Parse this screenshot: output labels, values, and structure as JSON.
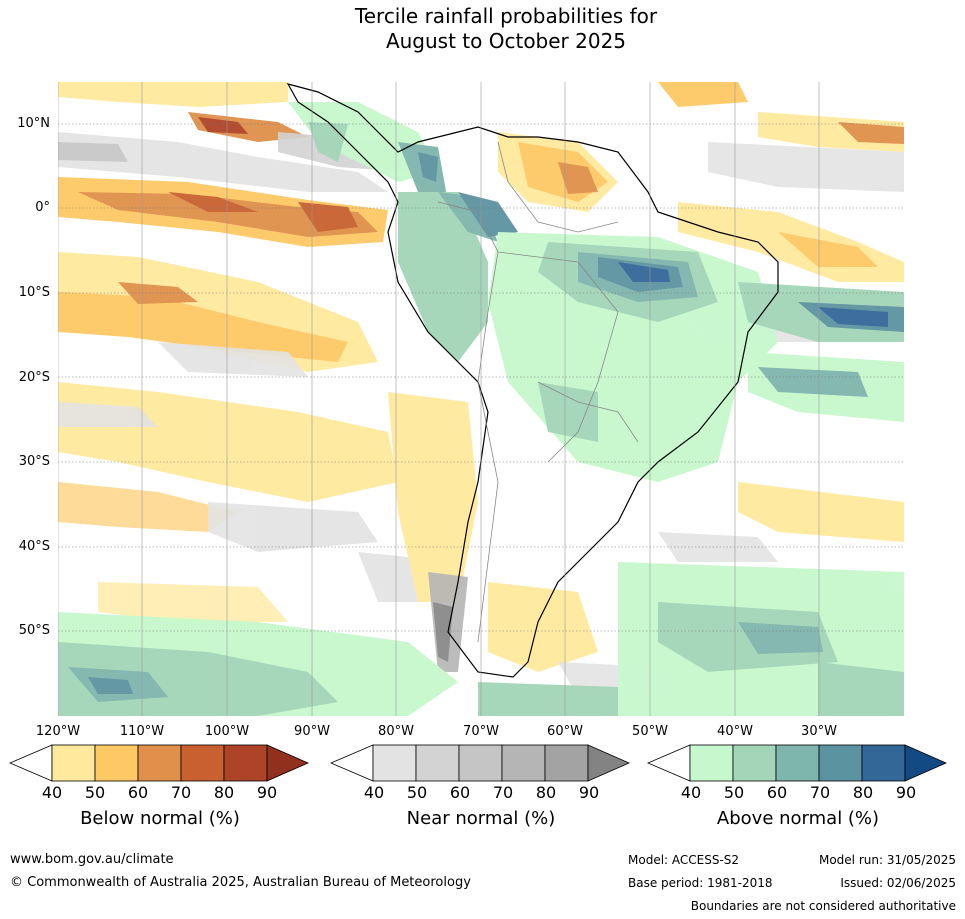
{
  "title": {
    "line1": "Tercile rainfall probabilities for",
    "line2": "August to October 2025"
  },
  "lat_labels": [
    "10°N",
    "0°",
    "10°S",
    "20°S",
    "30°S",
    "40°S",
    "50°S"
  ],
  "lon_labels": [
    "120°W",
    "110°W",
    "100°W",
    "90°W",
    "80°W",
    "70°W",
    "60°W",
    "50°W",
    "40°W",
    "30°W"
  ],
  "colorbars": [
    {
      "title": "Below normal (%)",
      "ticks": [
        "40",
        "50",
        "60",
        "70",
        "80",
        "90"
      ],
      "colors": [
        "#ffe99d",
        "#fec965",
        "#e0904a",
        "#c8602f",
        "#ae4427",
        "#92301e"
      ]
    },
    {
      "title": "Near normal (%)",
      "ticks": [
        "40",
        "50",
        "60",
        "70",
        "80",
        "90"
      ],
      "colors": [
        "#e3e3e3",
        "#d3d3d3",
        "#c5c5c5",
        "#b5b5b5",
        "#a3a3a3",
        "#838383"
      ]
    },
    {
      "title": "Above normal (%)",
      "ticks": [
        "40",
        "50",
        "60",
        "70",
        "80",
        "90"
      ],
      "colors": [
        "#c7f8cd",
        "#a3d5b8",
        "#7eb5ac",
        "#5b93a0",
        "#336798",
        "#124a83"
      ]
    }
  ],
  "footer": {
    "website": "www.bom.gov.au/climate",
    "copyright": "© Commonwealth of Australia 2025, Australian Bureau of Meteorology",
    "model": "Model: ACCESS-S2",
    "model_run": "Model run: 31/05/2025",
    "base_period": "Base period: 1981-2018",
    "issued": "Issued: 02/06/2025",
    "disclaimer": "Boundaries are not considered authoritative"
  }
}
